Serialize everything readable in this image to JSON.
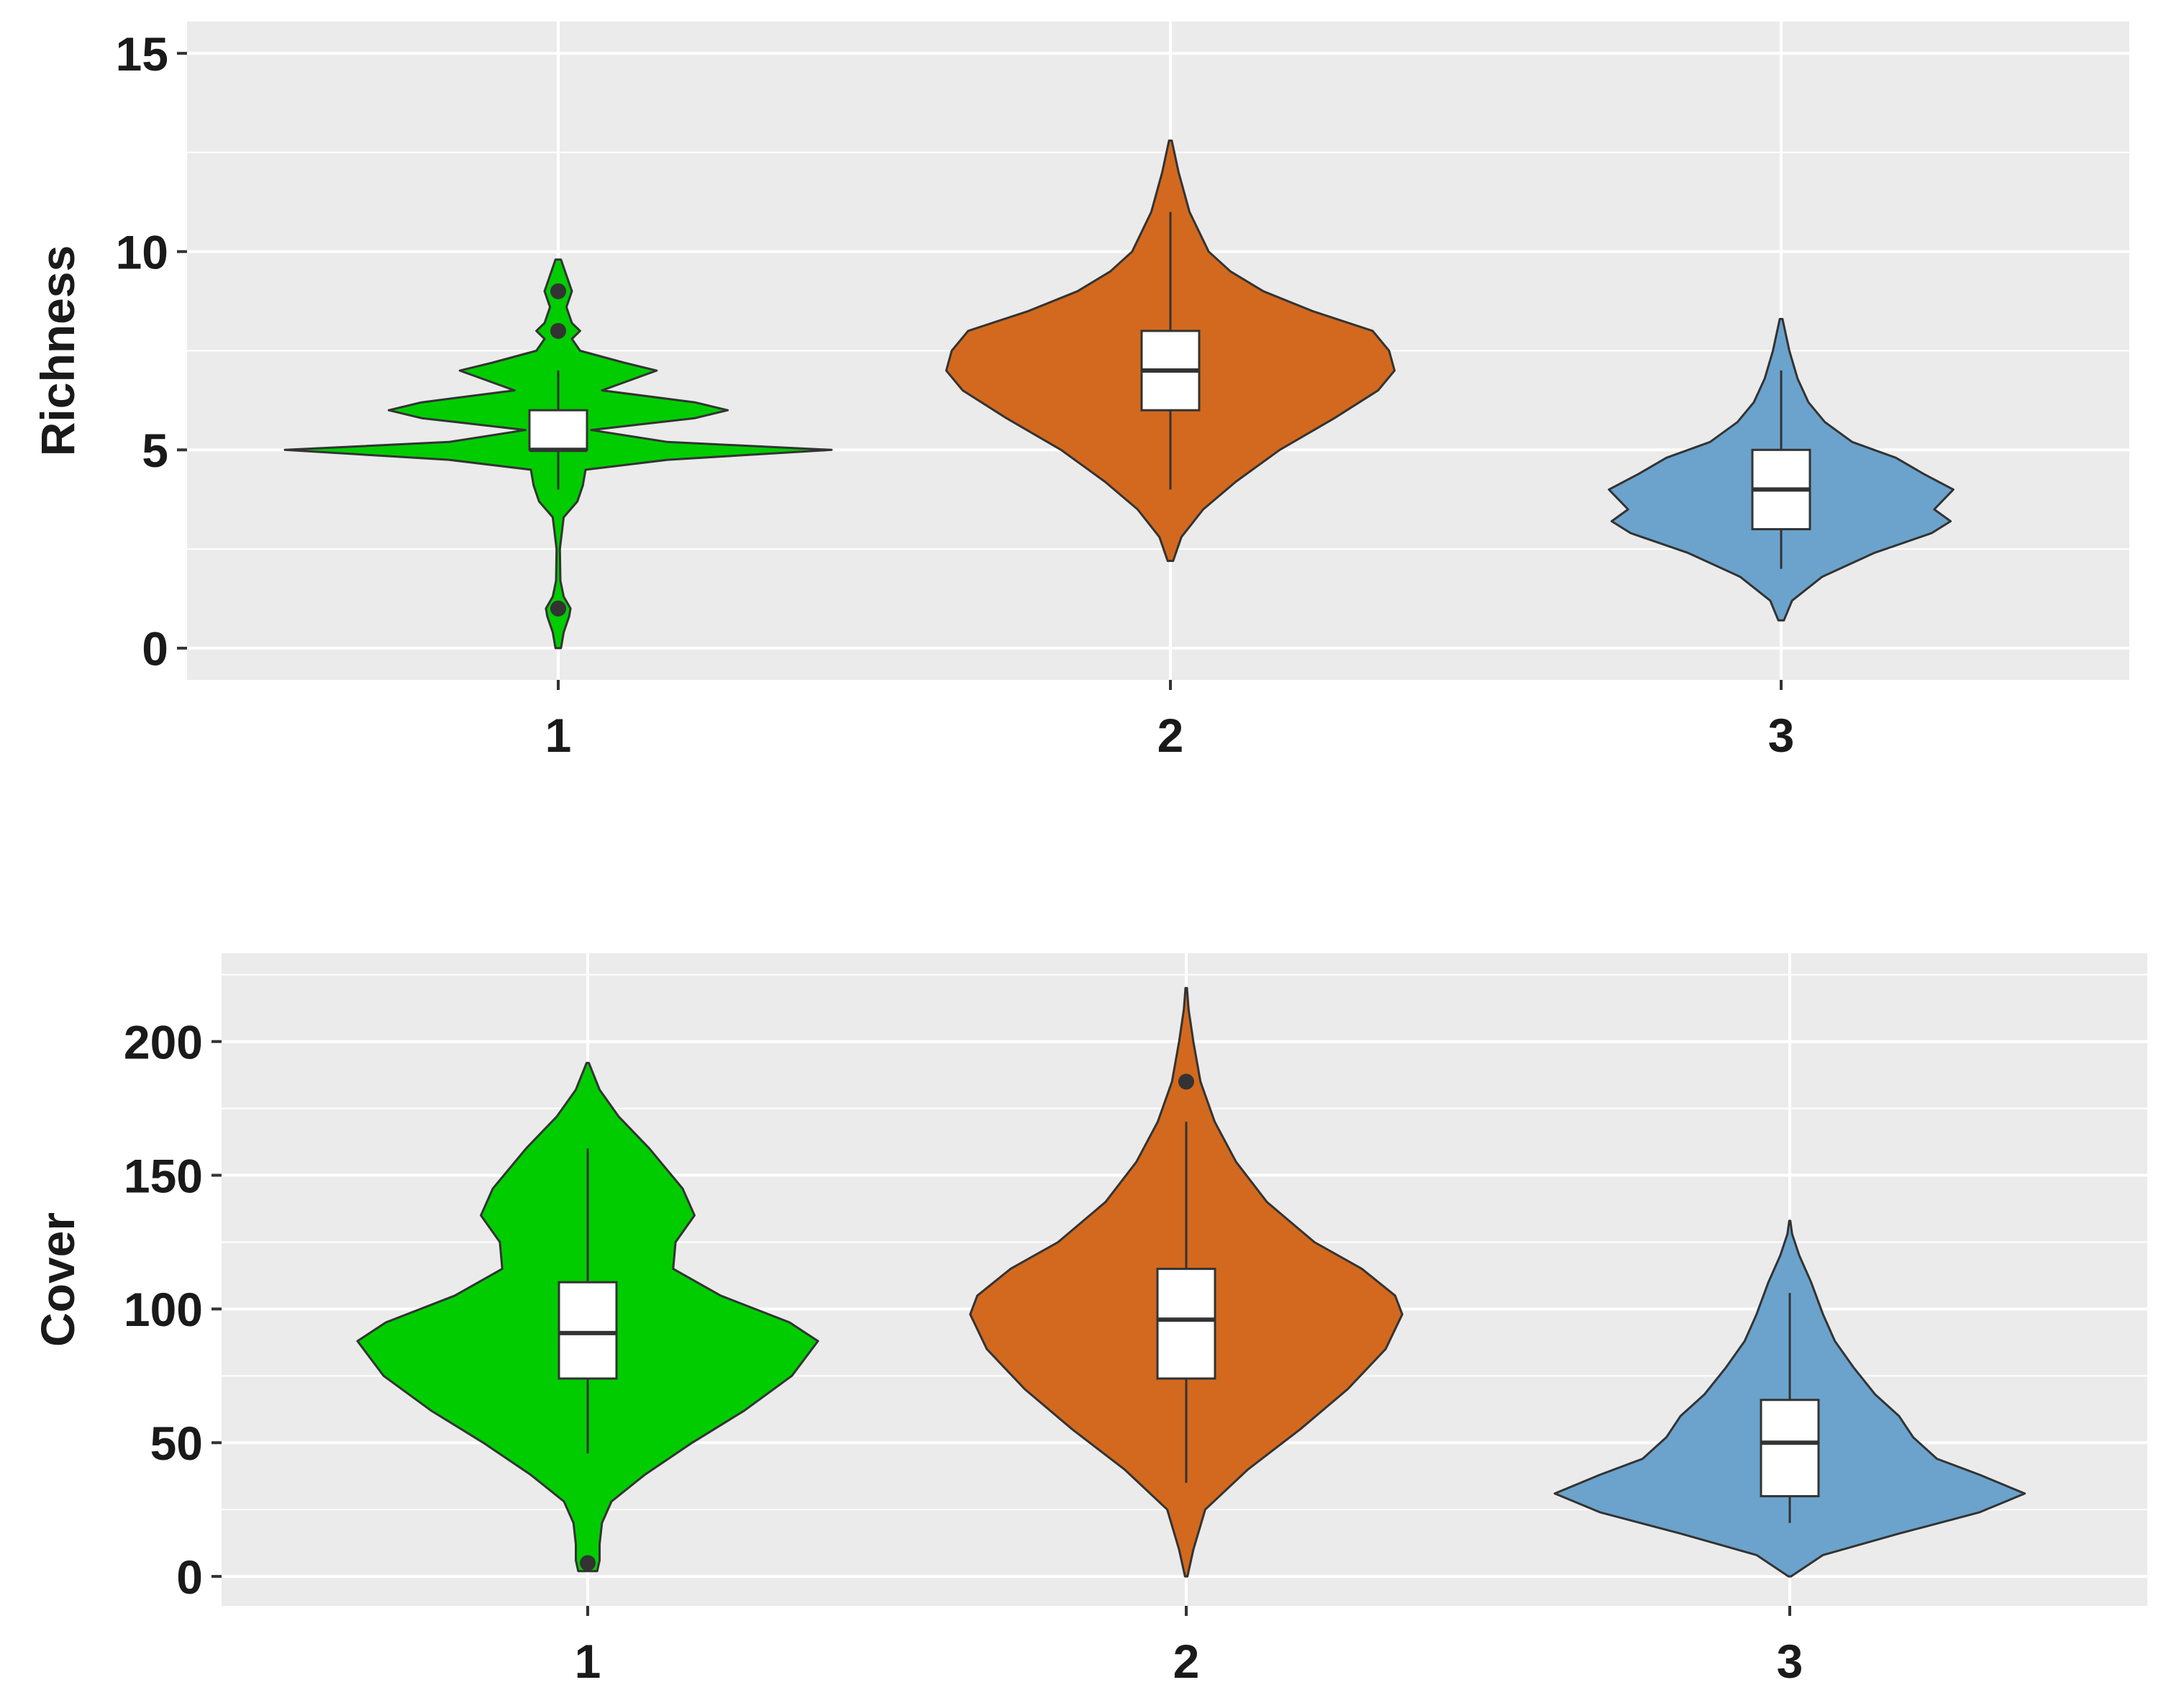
{
  "chart_data": [
    {
      "type": "violin",
      "ylabel": "Richness",
      "xlabel": "",
      "categories": [
        "1",
        "2",
        "3"
      ],
      "ylim": [
        -0.8,
        15.8
      ],
      "yticks": [
        0,
        5,
        10,
        15
      ],
      "grid": true,
      "groups": [
        {
          "category": "1",
          "color": "#00CC00",
          "box": {
            "q1": 5,
            "median": 5,
            "q3": 6,
            "whisker_low": 4,
            "whisker_high": 7
          },
          "outliers": [
            1,
            1,
            8,
            9
          ],
          "density": [
            [
              0,
              0.01
            ],
            [
              0.4,
              0.02
            ],
            [
              0.8,
              0.04
            ],
            [
              1.0,
              0.045
            ],
            [
              1.3,
              0.02
            ],
            [
              1.7,
              0.008
            ],
            [
              2.5,
              0.006
            ],
            [
              3.3,
              0.02
            ],
            [
              3.7,
              0.07
            ],
            [
              4.1,
              0.09
            ],
            [
              4.5,
              0.1
            ],
            [
              4.75,
              0.4
            ],
            [
              5.0,
              1.0
            ],
            [
              5.2,
              0.4
            ],
            [
              5.5,
              0.12
            ],
            [
              5.8,
              0.5
            ],
            [
              6.0,
              0.62
            ],
            [
              6.2,
              0.5
            ],
            [
              6.5,
              0.16
            ],
            [
              6.8,
              0.28
            ],
            [
              7.0,
              0.36
            ],
            [
              7.2,
              0.24
            ],
            [
              7.5,
              0.08
            ],
            [
              7.8,
              0.05
            ],
            [
              8.0,
              0.08
            ],
            [
              8.2,
              0.05
            ],
            [
              8.6,
              0.03
            ],
            [
              9.0,
              0.05
            ],
            [
              9.4,
              0.03
            ],
            [
              9.8,
              0.01
            ]
          ]
        },
        {
          "category": "2",
          "color": "#D2691E",
          "box": {
            "q1": 6,
            "median": 7,
            "q3": 8,
            "whisker_low": 4,
            "whisker_high": 11
          },
          "outliers": [],
          "density": [
            [
              2.2,
              0.01
            ],
            [
              2.8,
              0.04
            ],
            [
              3.5,
              0.12
            ],
            [
              4.2,
              0.24
            ],
            [
              5.0,
              0.4
            ],
            [
              5.8,
              0.6
            ],
            [
              6.5,
              0.76
            ],
            [
              7.0,
              0.82
            ],
            [
              7.5,
              0.8
            ],
            [
              8.0,
              0.74
            ],
            [
              8.5,
              0.52
            ],
            [
              9.0,
              0.34
            ],
            [
              9.5,
              0.22
            ],
            [
              10.0,
              0.14
            ],
            [
              11.0,
              0.07
            ],
            [
              12.0,
              0.03
            ],
            [
              12.8,
              0.005
            ]
          ]
        },
        {
          "category": "3",
          "color": "#6BA3CC",
          "box": {
            "q1": 3,
            "median": 4,
            "q3": 5,
            "whisker_low": 2,
            "whisker_high": 7
          },
          "outliers": [],
          "density": [
            [
              0.7,
              0.01
            ],
            [
              1.2,
              0.04
            ],
            [
              1.8,
              0.15
            ],
            [
              2.4,
              0.34
            ],
            [
              2.9,
              0.55
            ],
            [
              3.2,
              0.62
            ],
            [
              3.5,
              0.56
            ],
            [
              4.0,
              0.63
            ],
            [
              4.4,
              0.52
            ],
            [
              4.8,
              0.42
            ],
            [
              5.2,
              0.26
            ],
            [
              5.7,
              0.16
            ],
            [
              6.2,
              0.1
            ],
            [
              6.8,
              0.06
            ],
            [
              7.5,
              0.03
            ],
            [
              8.3,
              0.005
            ]
          ]
        }
      ]
    },
    {
      "type": "violin",
      "ylabel": "Cover",
      "xlabel": "",
      "categories": [
        "1",
        "2",
        "3"
      ],
      "ylim": [
        -11,
        233
      ],
      "yticks": [
        0,
        50,
        100,
        150,
        200
      ],
      "grid": true,
      "groups": [
        {
          "category": "1",
          "color": "#00CC00",
          "box": {
            "q1": 74,
            "median": 91,
            "q3": 110,
            "whisker_low": 46,
            "whisker_high": 160
          },
          "outliers": [
            5
          ],
          "density": [
            [
              2,
              0.04
            ],
            [
              6,
              0.05
            ],
            [
              12,
              0.05
            ],
            [
              20,
              0.06
            ],
            [
              28,
              0.1
            ],
            [
              38,
              0.24
            ],
            [
              50,
              0.44
            ],
            [
              62,
              0.66
            ],
            [
              75,
              0.86
            ],
            [
              88,
              0.97
            ],
            [
              95,
              0.85
            ],
            [
              105,
              0.56
            ],
            [
              115,
              0.36
            ],
            [
              125,
              0.37
            ],
            [
              135,
              0.45
            ],
            [
              145,
              0.4
            ],
            [
              160,
              0.26
            ],
            [
              172,
              0.13
            ],
            [
              182,
              0.05
            ],
            [
              192,
              0.005
            ]
          ]
        },
        {
          "category": "2",
          "color": "#D2691E",
          "box": {
            "q1": 74,
            "median": 96,
            "q3": 115,
            "whisker_low": 35,
            "whisker_high": 170
          },
          "outliers": [
            185
          ],
          "density": [
            [
              0,
              0.005
            ],
            [
              10,
              0.03
            ],
            [
              25,
              0.08
            ],
            [
              40,
              0.26
            ],
            [
              55,
              0.48
            ],
            [
              70,
              0.68
            ],
            [
              85,
              0.84
            ],
            [
              98,
              0.91
            ],
            [
              105,
              0.88
            ],
            [
              115,
              0.74
            ],
            [
              125,
              0.54
            ],
            [
              140,
              0.34
            ],
            [
              155,
              0.21
            ],
            [
              170,
              0.12
            ],
            [
              185,
              0.06
            ],
            [
              200,
              0.03
            ],
            [
              212,
              0.01
            ],
            [
              220,
              0.003
            ]
          ]
        },
        {
          "category": "3",
          "color": "#6BA3CC",
          "box": {
            "q1": 30,
            "median": 50,
            "q3": 66,
            "whisker_low": 20,
            "whisker_high": 106
          },
          "outliers": [],
          "density": [
            [
              0,
              0.005
            ],
            [
              8,
              0.14
            ],
            [
              16,
              0.46
            ],
            [
              24,
              0.8
            ],
            [
              31,
              0.99
            ],
            [
              38,
              0.8
            ],
            [
              44,
              0.62
            ],
            [
              52,
              0.52
            ],
            [
              60,
              0.46
            ],
            [
              68,
              0.36
            ],
            [
              78,
              0.27
            ],
            [
              88,
              0.19
            ],
            [
              98,
              0.14
            ],
            [
              110,
              0.09
            ],
            [
              120,
              0.04
            ],
            [
              128,
              0.01
            ],
            [
              133,
              0.002
            ]
          ]
        }
      ]
    }
  ]
}
